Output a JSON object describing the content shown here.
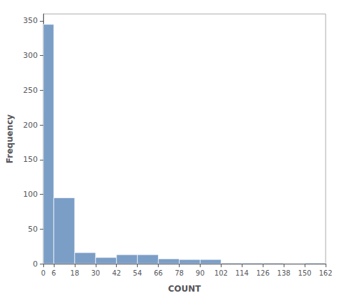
{
  "chart_data": {
    "type": "histogram",
    "xlabel": "COUNT",
    "ylabel": "Frequency",
    "bins": [
      0,
      6,
      18,
      30,
      42,
      54,
      66,
      78,
      90,
      102,
      114,
      126,
      138,
      150,
      162
    ],
    "values": [
      345,
      95,
      16,
      9,
      13,
      13,
      7,
      6,
      6,
      1,
      1,
      1,
      0,
      1
    ],
    "color": "#7b9ec7",
    "xlim": [
      0,
      162
    ],
    "xticks": [
      0,
      6,
      18,
      30,
      42,
      54,
      66,
      78,
      90,
      102,
      114,
      126,
      138,
      150,
      162
    ],
    "ylim": [
      0,
      360
    ],
    "yticks": [
      0,
      50,
      100,
      150,
      200,
      250,
      300,
      350
    ],
    "grid": false
  }
}
